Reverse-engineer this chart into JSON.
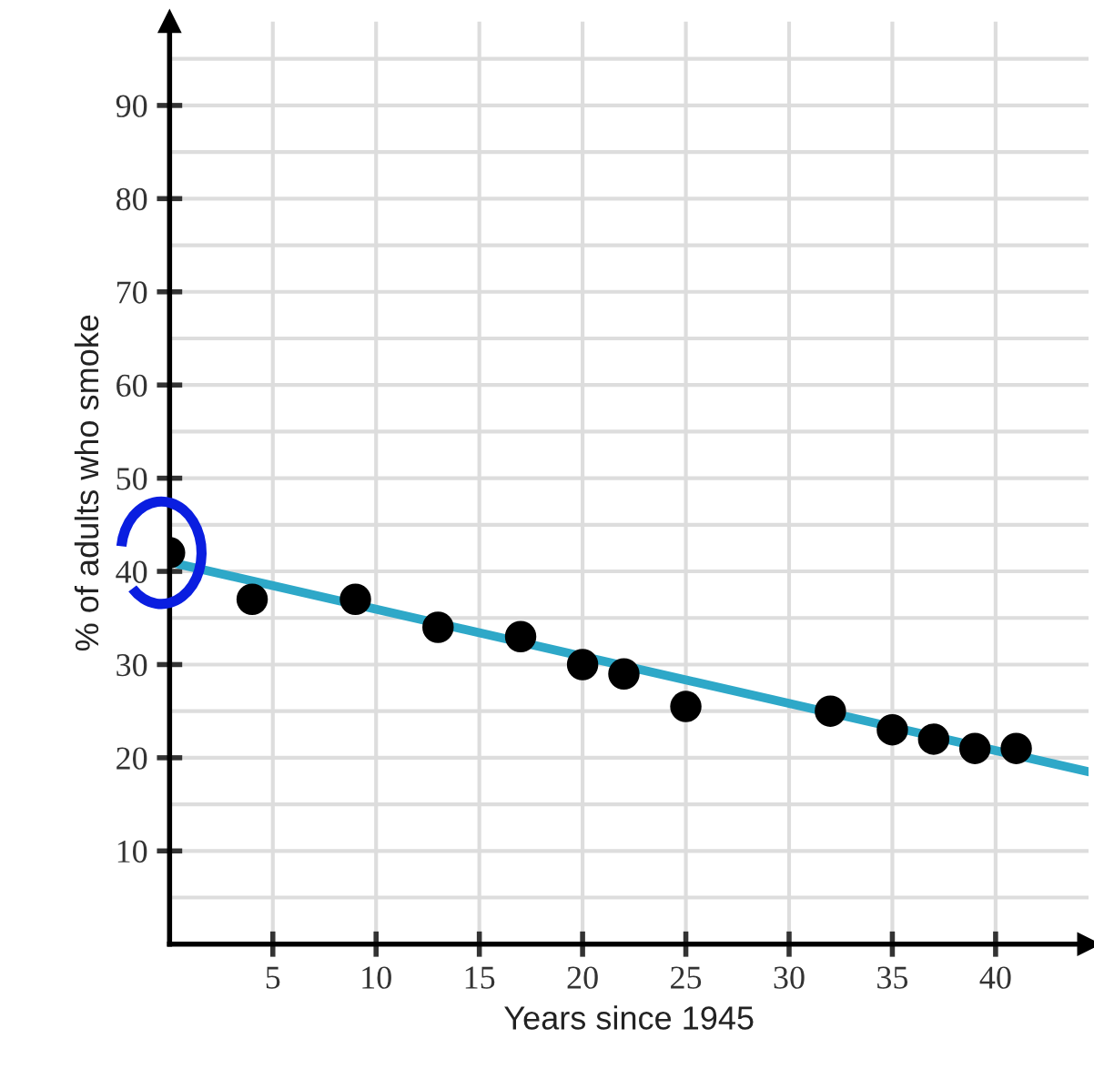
{
  "chart_data": {
    "type": "scatter",
    "xlabel": "Years since 1945",
    "ylabel": "% of adults who smoke",
    "series": [
      {
        "color": "#000000",
        "marker": "circle",
        "x": [
          0,
          4,
          9,
          13,
          17,
          20,
          22,
          25,
          32,
          35,
          37,
          39,
          41
        ],
        "values": [
          42,
          37,
          37,
          34,
          33,
          30,
          29,
          25.5,
          25,
          23,
          22,
          21,
          21
        ]
      },
      {
        "type": "line",
        "color": "#2ea8c8",
        "line_style": "solid",
        "x": [
          0,
          44.5
        ],
        "values": [
          41,
          18.5
        ]
      }
    ],
    "xlim": [
      0,
      44.5
    ],
    "ylim": [
      0,
      99
    ],
    "xticks": [
      5,
      10,
      15,
      20,
      25,
      30,
      35,
      40
    ],
    "yticks": [
      {
        "value": 5,
        "label": null
      },
      10,
      {
        "value": 15,
        "label": null
      },
      20,
      {
        "value": 25,
        "label": null
      },
      30,
      {
        "value": 35,
        "label": null
      },
      40,
      {
        "value": 45,
        "label": null
      },
      50,
      {
        "value": 55,
        "label": null
      },
      60,
      {
        "value": 65,
        "label": null
      },
      70,
      {
        "value": 75,
        "label": null
      },
      80,
      {
        "value": 85,
        "label": null
      },
      90,
      {
        "value": 95,
        "label": null
      }
    ],
    "grid": true
  }
}
